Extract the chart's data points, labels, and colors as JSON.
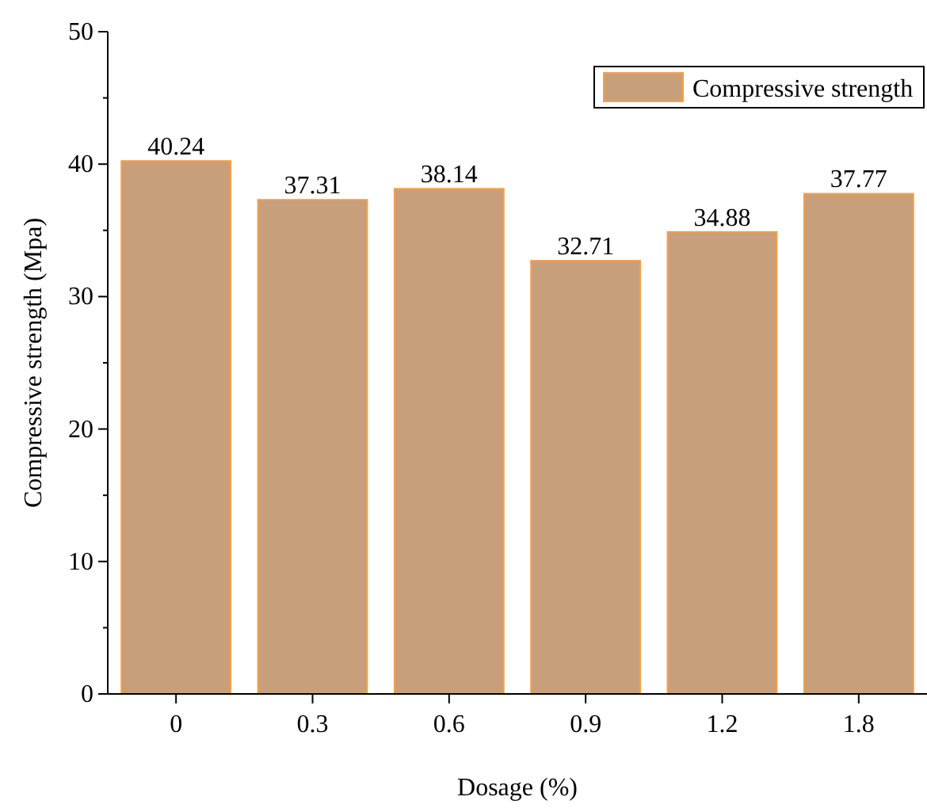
{
  "chart_data": {
    "type": "bar",
    "xlabel": "Dosage (%)",
    "ylabel": "Compressive strength (Mpa)",
    "categories": [
      "0",
      "0.3",
      "0.6",
      "0.9",
      "1.2",
      "1.8"
    ],
    "series": [
      {
        "name": "Compressive strength",
        "color": "#c89f7b",
        "values": [
          40.24,
          37.31,
          38.14,
          32.71,
          34.88,
          37.77
        ]
      }
    ],
    "ylim": [
      0,
      50
    ],
    "yticks": [
      0,
      10,
      20,
      30,
      40,
      50
    ],
    "data_labels": true,
    "legend": "top right",
    "grid": false
  }
}
